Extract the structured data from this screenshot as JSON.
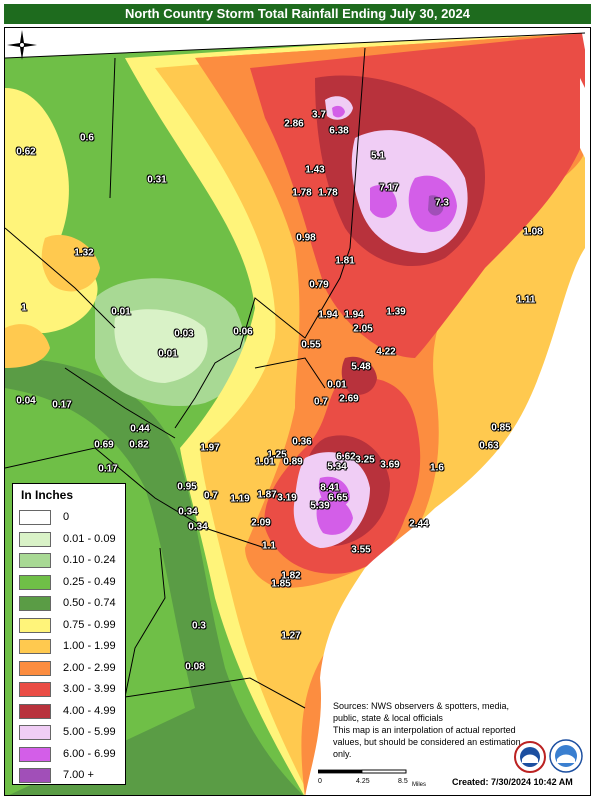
{
  "title": "North Country Storm Total Rainfall Ending July 30, 2024",
  "legend": {
    "title": "In Inches",
    "items": [
      {
        "label": "0",
        "color": "#ffffff"
      },
      {
        "label": "0.01 - 0.09",
        "color": "#d9f2c7"
      },
      {
        "label": "0.10 - 0.24",
        "color": "#a8d994"
      },
      {
        "label": "0.25 - 0.49",
        "color": "#6fbf47"
      },
      {
        "label": "0.50 - 0.74",
        "color": "#5a9c45"
      },
      {
        "label": "0.75 - 0.99",
        "color": "#fff47a"
      },
      {
        "label": "1.00 - 1.99",
        "color": "#ffc94f"
      },
      {
        "label": "2.00 - 2.99",
        "color": "#fc8d40"
      },
      {
        "label": "3.00 - 3.99",
        "color": "#ea4d45"
      },
      {
        "label": "4.00 - 4.99",
        "color": "#b8323c"
      },
      {
        "label": "5.00 - 5.99",
        "color": "#f0cdf5"
      },
      {
        "label": "6.00 - 6.99",
        "color": "#d35ee8"
      },
      {
        "label": "7.00 +",
        "color": "#a14fb8"
      }
    ]
  },
  "rainfall_labels": [
    "0.62",
    "0.6",
    "0.31",
    "1.32",
    "1",
    "3.7",
    "6.38",
    "2.86",
    "5.1",
    "1.43",
    "1.78",
    "1.78",
    "7.17",
    "7.3",
    "1.08",
    "0.98",
    "1.81",
    "0.79",
    "1.11",
    "0.01",
    "0.03",
    "0.06",
    "0.01",
    "1.94",
    "1.94",
    "1.39",
    "2.05",
    "0.55",
    "4.22",
    "5.48",
    "0.04",
    "0.17",
    "0.01",
    "0.7",
    "2.69",
    "0.44",
    "0.82",
    "0.69",
    "0.17",
    "1.97",
    "0.36",
    "0.85",
    "0.63",
    "1.25",
    "6.62",
    "5.34",
    "1.01",
    "0.89",
    "3.25",
    "3.69",
    "1.6",
    "0.95",
    "0.7",
    "8.41",
    "0.34",
    "1.19",
    "1.87",
    "3.19",
    "6.65",
    "5.39",
    "0.34",
    "2.09",
    "2.44",
    "1.1",
    "3.55",
    "1.82",
    "1.85",
    "0.3",
    "1.27",
    "0.08"
  ],
  "sources": "Sources: NWS observers & spotters, media, public, state & local officials",
  "disclaimer": "This map is an interpolation of actual reported values, but should be considered an estimation only.",
  "scale": {
    "zero": "0",
    "mid": "4.25",
    "max": "8.5",
    "unit": "Miles"
  },
  "created": "Created: 7/30/2024 10:42 AM"
}
